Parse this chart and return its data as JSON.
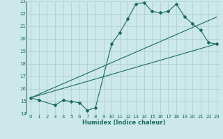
{
  "xlabel": "Humidex (Indice chaleur)",
  "xlim": [
    -0.5,
    23.5
  ],
  "ylim": [
    14,
    23
  ],
  "xticks": [
    0,
    1,
    2,
    3,
    4,
    5,
    6,
    7,
    8,
    9,
    10,
    11,
    12,
    13,
    14,
    15,
    16,
    17,
    18,
    19,
    20,
    21,
    22,
    23
  ],
  "yticks": [
    14,
    15,
    16,
    17,
    18,
    19,
    20,
    21,
    22,
    23
  ],
  "bg_color": "#cce8e8",
  "grid_color": "#aacccc",
  "line_color": "#1a6b5a",
  "line1_x": [
    0,
    1,
    3,
    4,
    5,
    6,
    7,
    8,
    10,
    11,
    12,
    13,
    14,
    15,
    16,
    17,
    18,
    19,
    20,
    21,
    22,
    23
  ],
  "line1_y": [
    15.3,
    15.1,
    14.7,
    15.1,
    15.0,
    14.9,
    14.3,
    14.5,
    19.6,
    20.5,
    21.6,
    22.8,
    22.9,
    22.2,
    22.1,
    22.2,
    22.8,
    21.8,
    21.2,
    20.7,
    19.7,
    19.6
  ],
  "line2_x": [
    0,
    23
  ],
  "line2_y": [
    15.3,
    19.6
  ],
  "line3_x": [
    0,
    23
  ],
  "line3_y": [
    15.3,
    21.75
  ],
  "marker": "D",
  "markersize": 2.0,
  "linewidth": 0.8,
  "tick_fontsize": 5.0,
  "xlabel_fontsize": 6.0
}
